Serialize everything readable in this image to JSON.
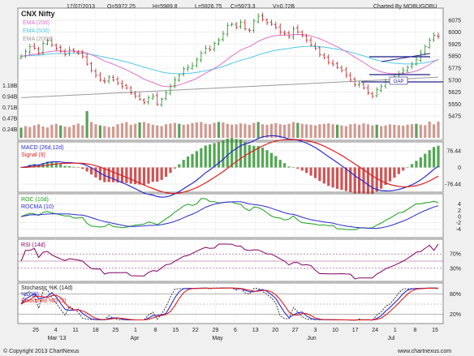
{
  "header": {
    "symbol": "CNX Nifty",
    "date": "17/07/2013",
    "open": "O=5972.25",
    "high": "H=5989.8",
    "low": "L=5926.75",
    "close": "C=5973.3",
    "volume": "V=0.72B",
    "credit": "Charted By MOBUGOBU",
    "footer": "© Copyright 2013 ChartNexus",
    "watermark": "www.chartnexus.com"
  },
  "colors": {
    "up": "#1a8a1a",
    "down": "#c21a1a",
    "ema20": "#e070c8",
    "ema50": "#50c8e8",
    "ema200": "#9a9a9a",
    "volume": "#d09a90",
    "volume_hi": "#5aa05a",
    "macd": "#2a2ad0",
    "signal": "#e02020",
    "roc": "#1aa01a",
    "rocma": "#2a2ad0",
    "rsi": "#800060",
    "stoch_k": "#202020",
    "stoch_d": "#2a2ad0",
    "stoch_sd": "#e02020",
    "trend": "#20208a"
  },
  "chart_data": [
    {
      "panel": "price",
      "type": "candlestick",
      "legend": [
        "EMA (20d)",
        "EMA (50d)",
        "EMA (200d)"
      ],
      "y_ticks": [
        5475,
        5550,
        5625,
        5700,
        5775,
        5850,
        5925,
        6000,
        6075
      ],
      "volume_ticks": [
        "1.18B",
        "0.94B",
        "0.71B",
        "0.47B",
        "0.24B"
      ],
      "annotation": "GAP",
      "x_labels": [
        "25",
        "4",
        "11",
        "18",
        "25",
        "1",
        "8",
        "15",
        "22",
        "29",
        "6",
        "13",
        "20",
        "27",
        "3",
        "10",
        "17",
        "24",
        "1",
        "8",
        "15"
      ],
      "month_labels": [
        "Mar '13",
        "Apr",
        "May",
        "Jun",
        "Jul"
      ],
      "close": [
        5850,
        5880,
        5910,
        5900,
        5870,
        5930,
        5945,
        5920,
        5900,
        5880,
        5860,
        5890,
        5880,
        5870,
        5850,
        5800,
        5760,
        5730,
        5700,
        5690,
        5720,
        5700,
        5680,
        5660,
        5650,
        5620,
        5600,
        5580,
        5560,
        5590,
        5600,
        5550,
        5580,
        5620,
        5660,
        5700,
        5730,
        5770,
        5780,
        5790,
        5830,
        5870,
        5900,
        5890,
        5930,
        5950,
        5990,
        6040,
        6050,
        6030,
        6060,
        6020,
        6010,
        6070,
        6100,
        6080,
        6060,
        6050,
        6030,
        6000,
        5990,
        5970,
        6020,
        6000,
        5980,
        5950,
        5920,
        5900,
        5860,
        5840,
        5810,
        5800,
        5780,
        5760,
        5730,
        5700,
        5670,
        5680,
        5650,
        5620,
        5600,
        5640,
        5660,
        5690,
        5700,
        5720,
        5740,
        5760,
        5780,
        5800,
        5830,
        5870,
        5910,
        5950,
        5980,
        5973
      ],
      "volume": [
        0.45,
        0.52,
        0.48,
        0.55,
        0.6,
        0.5,
        0.46,
        0.58,
        0.62,
        0.55,
        0.5,
        0.48,
        0.57,
        0.63,
        0.55,
        1.18,
        0.7,
        0.6,
        0.55,
        0.52,
        0.48,
        0.5,
        0.6,
        0.65,
        0.7,
        0.58,
        0.62,
        0.68,
        0.7,
        0.64,
        0.58,
        0.55,
        0.52,
        0.6,
        0.63,
        0.66,
        0.62,
        0.58,
        0.6,
        0.65,
        0.68,
        0.7,
        0.62,
        0.6,
        0.66,
        0.7,
        0.68,
        0.62,
        0.58,
        0.6,
        0.64,
        0.62,
        0.58,
        0.66,
        0.7,
        0.6,
        0.58,
        0.62,
        0.65,
        0.6,
        0.58,
        0.62,
        0.7,
        0.66,
        0.62,
        0.6,
        0.58,
        0.55,
        0.6,
        0.62,
        0.64,
        0.6,
        0.58,
        0.55,
        0.52,
        0.6,
        0.62,
        0.58,
        0.64,
        0.6,
        0.55,
        0.58,
        0.52,
        0.55,
        0.6,
        0.58,
        0.56,
        0.54,
        0.58,
        0.6,
        0.62,
        0.58,
        0.56,
        0.72,
        0.6,
        0.72
      ]
    },
    {
      "panel": "macd",
      "type": "line",
      "legend": [
        "MACD (26d,12d)",
        "Signal (9)"
      ],
      "y_ticks": [
        "76.44",
        "0",
        "-76.44"
      ],
      "ylim": [
        -100,
        100
      ]
    },
    {
      "panel": "roc",
      "type": "line",
      "legend": [
        "ROC (10d)",
        "ROCMA (10)"
      ],
      "y_ticks": [
        "4",
        "2",
        "0",
        "-2",
        "-4"
      ],
      "ylim": [
        -6,
        6
      ]
    },
    {
      "panel": "rsi",
      "type": "line",
      "legend": [
        "RSI (14d)"
      ],
      "y_ticks": [
        "70%",
        "30%"
      ],
      "ylim": [
        0,
        100
      ]
    },
    {
      "panel": "stochastic",
      "type": "line",
      "legend": [
        "Stochastic %K (14d)",
        "%D (3)",
        "Smoothed %D (3)"
      ],
      "y_ticks": [
        "80%",
        "20%"
      ],
      "ylim": [
        0,
        100
      ]
    }
  ]
}
